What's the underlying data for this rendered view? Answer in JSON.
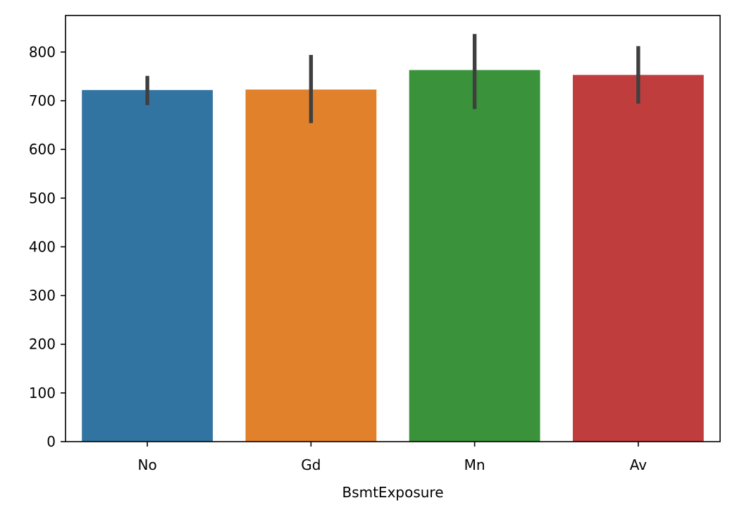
{
  "chart_data": {
    "type": "bar",
    "title": "",
    "xlabel": "BsmtExposure",
    "ylabel": "",
    "categories": [
      "No",
      "Gd",
      "Mn",
      "Av"
    ],
    "values": [
      722,
      723,
      763,
      753
    ],
    "error_bars": [
      {
        "low": 691,
        "high": 751
      },
      {
        "low": 654,
        "high": 794
      },
      {
        "low": 683,
        "high": 837
      },
      {
        "low": 694,
        "high": 812
      }
    ],
    "colors": [
      "#3274a1",
      "#e1812c",
      "#3a923a",
      "#c03d3e"
    ],
    "error_color": "#3f3f3f",
    "ylim": [
      0,
      875
    ],
    "yticks": [
      0,
      100,
      200,
      300,
      400,
      500,
      600,
      700,
      800
    ],
    "grid": false,
    "legend": "none"
  }
}
